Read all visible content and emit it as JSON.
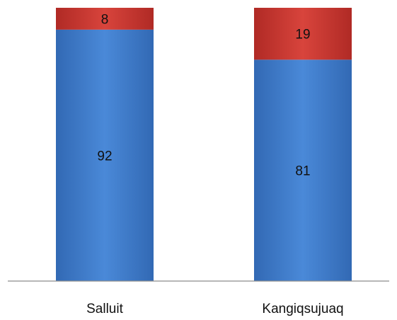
{
  "chart_data": {
    "type": "bar",
    "stacked": true,
    "percent_stacked": true,
    "categories": [
      "Salluit",
      "Kangiqsujuaq"
    ],
    "series": [
      {
        "values": [
          92,
          81
        ],
        "color": "#3d7cc9",
        "data_labels": [
          "92",
          "81"
        ]
      },
      {
        "values": [
          8,
          19
        ],
        "color": "#c0392b",
        "data_labels": [
          "8",
          "19"
        ]
      }
    ],
    "ylim": [
      0,
      100
    ],
    "grid": false,
    "legend": "none"
  }
}
